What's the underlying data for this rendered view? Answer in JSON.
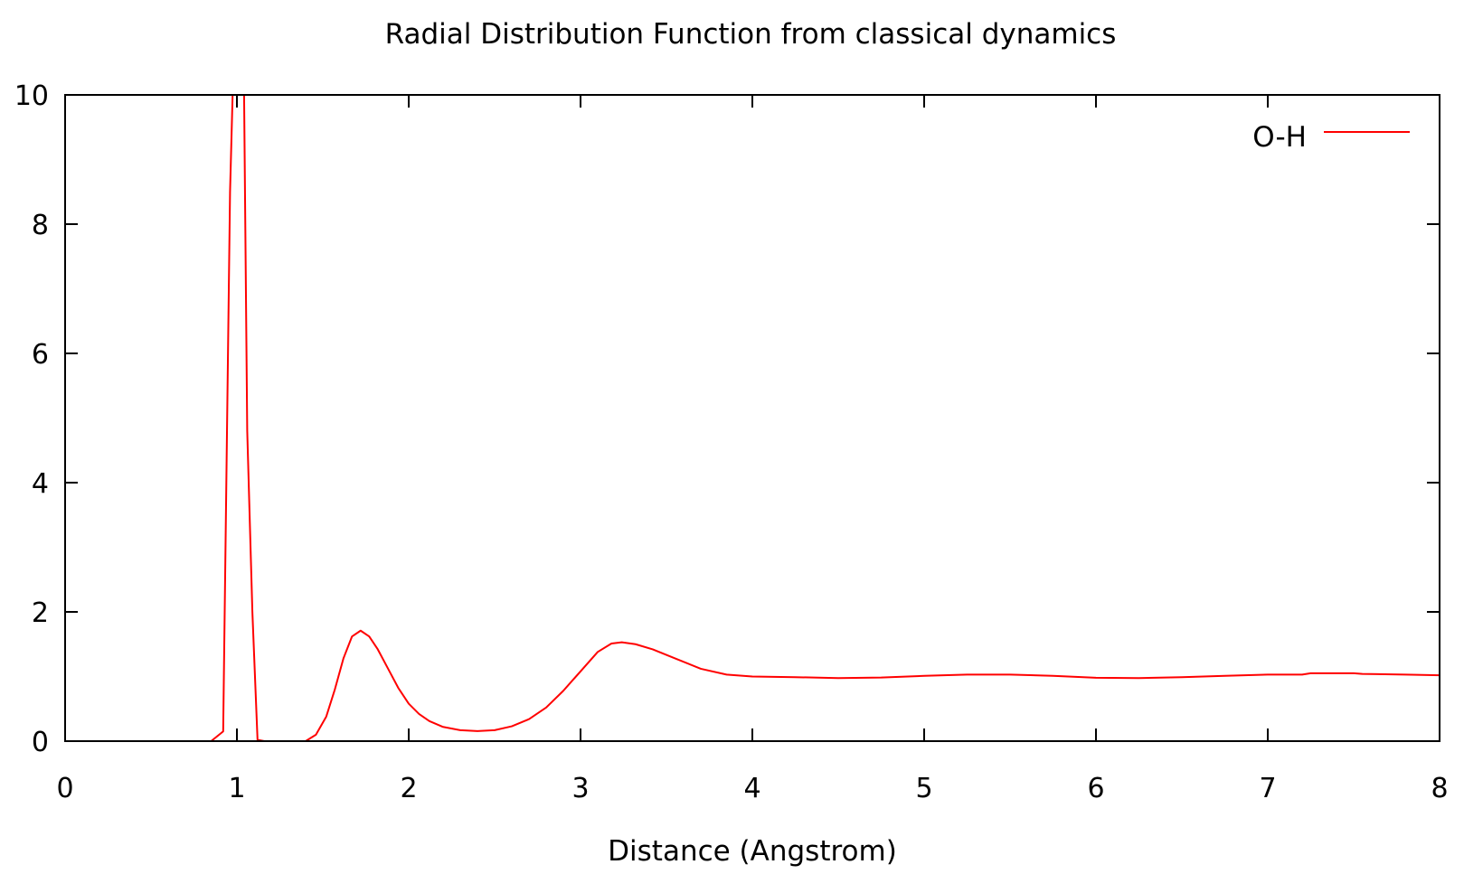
{
  "chart_data": {
    "type": "line",
    "title": "Radial Distribution Function from classical dynamics",
    "xlabel": "Distance (Angstrom)",
    "ylabel": "",
    "xlim": [
      0,
      8
    ],
    "ylim": [
      0,
      10
    ],
    "x_ticks": [
      "0",
      "1",
      "2",
      "3",
      "4",
      "5",
      "6",
      "7",
      "8"
    ],
    "y_ticks": [
      "0",
      "2",
      "4",
      "6",
      "8",
      "10"
    ],
    "grid": false,
    "legend_position": "top-right",
    "series": [
      {
        "name": "O-H",
        "color": "#ff0000",
        "points": [
          [
            0,
            0
          ],
          [
            0.85,
            0
          ],
          [
            0.92,
            0.15
          ],
          [
            0.96,
            8.5
          ],
          [
            0.98,
            10.5
          ],
          [
            1.04,
            10.5
          ],
          [
            1.06,
            4.8
          ],
          [
            1.09,
            2.0
          ],
          [
            1.12,
            0.02
          ],
          [
            1.16,
            0
          ],
          [
            1.4,
            0
          ],
          [
            1.46,
            0.1
          ],
          [
            1.52,
            0.38
          ],
          [
            1.57,
            0.8
          ],
          [
            1.62,
            1.28
          ],
          [
            1.67,
            1.62
          ],
          [
            1.72,
            1.71
          ],
          [
            1.77,
            1.62
          ],
          [
            1.82,
            1.42
          ],
          [
            1.88,
            1.12
          ],
          [
            1.94,
            0.82
          ],
          [
            2.0,
            0.58
          ],
          [
            2.06,
            0.42
          ],
          [
            2.12,
            0.31
          ],
          [
            2.2,
            0.22
          ],
          [
            2.3,
            0.17
          ],
          [
            2.4,
            0.155
          ],
          [
            2.5,
            0.17
          ],
          [
            2.6,
            0.23
          ],
          [
            2.7,
            0.34
          ],
          [
            2.8,
            0.52
          ],
          [
            2.9,
            0.78
          ],
          [
            3.0,
            1.08
          ],
          [
            3.1,
            1.38
          ],
          [
            3.18,
            1.51
          ],
          [
            3.24,
            1.53
          ],
          [
            3.32,
            1.5
          ],
          [
            3.42,
            1.42
          ],
          [
            3.55,
            1.28
          ],
          [
            3.7,
            1.12
          ],
          [
            3.85,
            1.03
          ],
          [
            4.0,
            1.0
          ],
          [
            4.25,
            0.99
          ],
          [
            4.5,
            0.975
          ],
          [
            4.75,
            0.985
          ],
          [
            5.0,
            1.01
          ],
          [
            5.25,
            1.03
          ],
          [
            5.5,
            1.03
          ],
          [
            5.75,
            1.01
          ],
          [
            6.0,
            0.98
          ],
          [
            6.25,
            0.975
          ],
          [
            6.5,
            0.99
          ],
          [
            6.75,
            1.01
          ],
          [
            7.0,
            1.03
          ],
          [
            7.2,
            1.03
          ],
          [
            7.25,
            1.05
          ],
          [
            7.5,
            1.05
          ],
          [
            7.55,
            1.04
          ],
          [
            7.8,
            1.03
          ],
          [
            8.0,
            1.02
          ]
        ]
      }
    ]
  }
}
